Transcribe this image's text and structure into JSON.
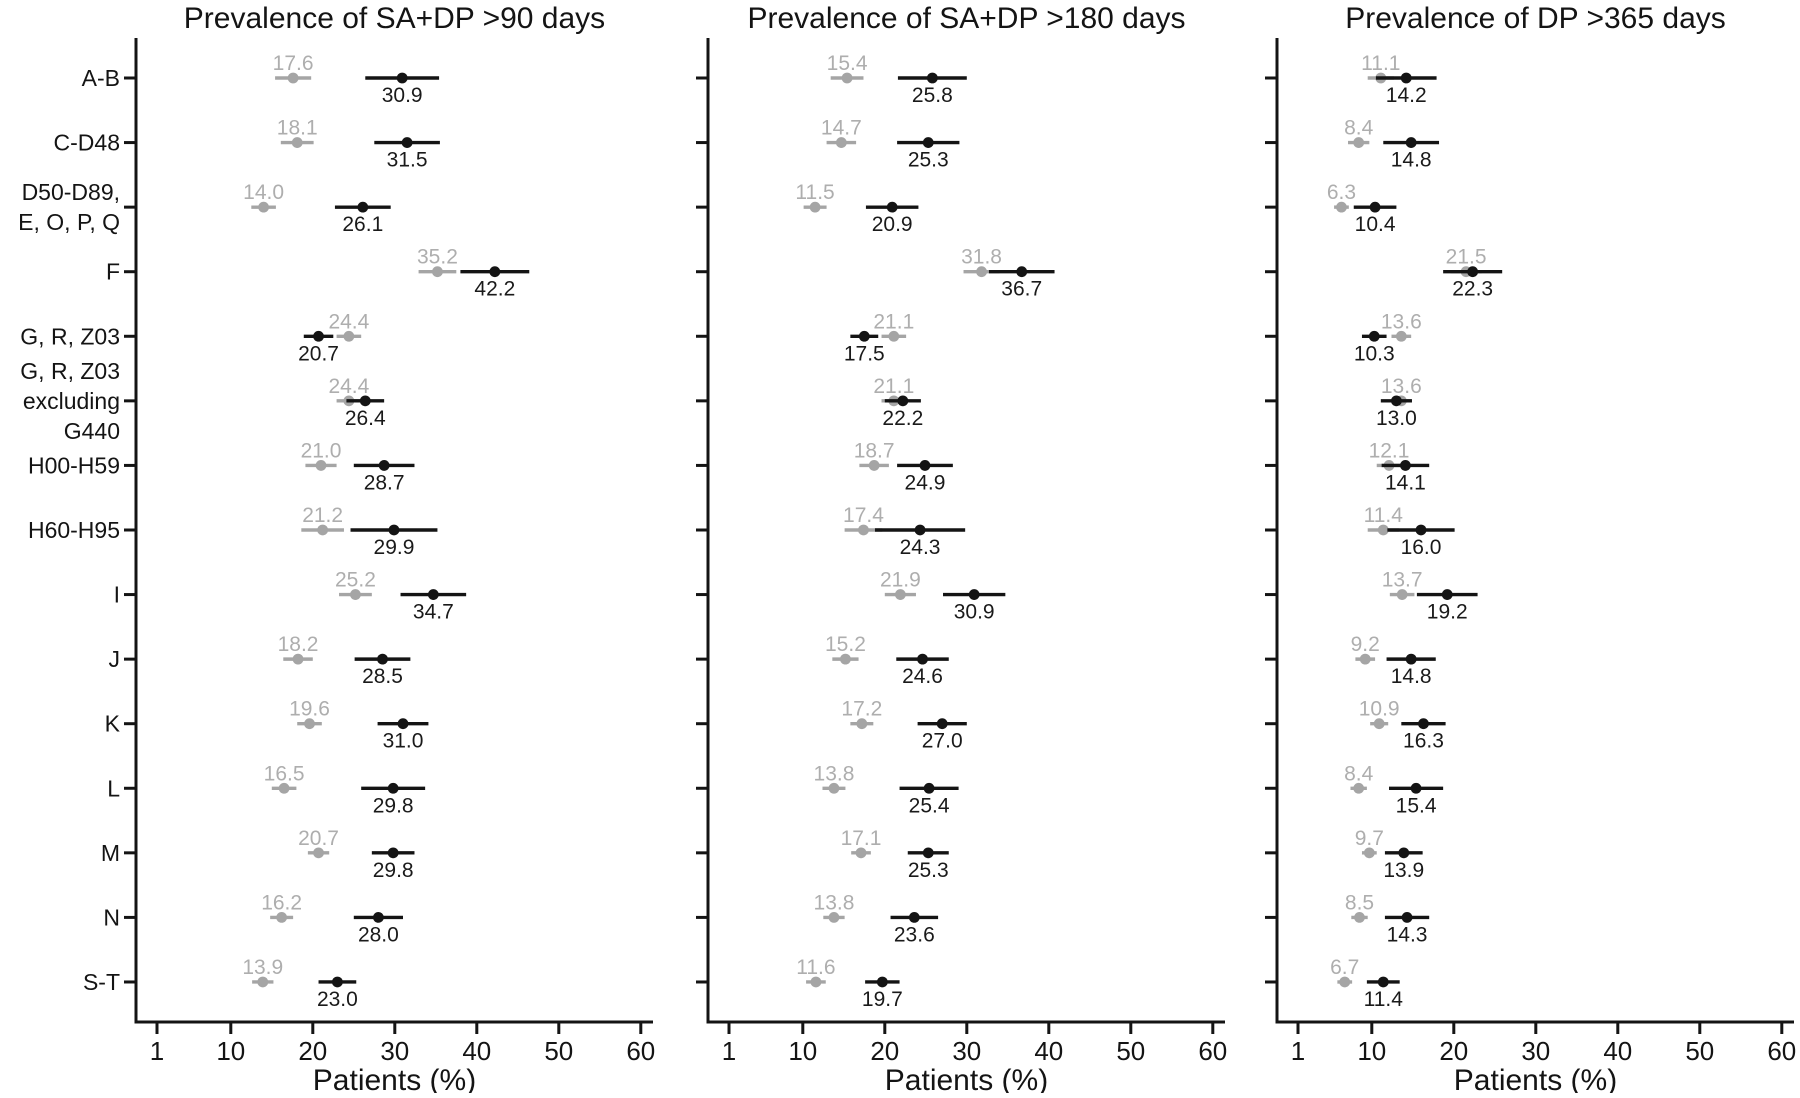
{
  "figure": {
    "background": "#ffffff",
    "series_colors": {
      "gray": "#a5a5a5",
      "black": "#141414"
    },
    "label_colors": {
      "gray": "#aeaeae",
      "black": "#1a1a1a"
    },
    "xlabel": "Patients (%)"
  },
  "chart_data": [
    {
      "type": "scatter",
      "title": "Prevalence of SA+DP >90 days",
      "xlabel": "Patients (%)",
      "scale": "linear",
      "xlim": [
        1,
        60
      ],
      "xticks": [
        1,
        10,
        20,
        30,
        40,
        50,
        60
      ],
      "grid": false,
      "legend": "none",
      "categories": [
        [
          "A-B"
        ],
        [
          "C-D48"
        ],
        [
          "D50-D89,",
          "E, O, P, Q"
        ],
        [
          "F"
        ],
        [
          "G, R, Z03"
        ],
        [
          "G, R, Z03",
          "excluding",
          "G440"
        ],
        [
          "H00-H59"
        ],
        [
          "H60-H95"
        ],
        [
          "I"
        ],
        [
          "J"
        ],
        [
          "K"
        ],
        [
          "L"
        ],
        [
          "M"
        ],
        [
          "N"
        ],
        [
          "S-T"
        ]
      ],
      "series": [
        {
          "name": "gray",
          "color": "#a5a5a5",
          "label_position": "above",
          "points": [
            {
              "value": 17.6,
              "lo": 15.4,
              "hi": 19.8
            },
            {
              "value": 18.1,
              "lo": 16.1,
              "hi": 20.1
            },
            {
              "value": 14.0,
              "lo": 12.5,
              "hi": 15.5
            },
            {
              "value": 35.2,
              "lo": 32.9,
              "hi": 37.5
            },
            {
              "value": 24.4,
              "lo": 22.9,
              "hi": 25.9
            },
            {
              "value": 24.4,
              "lo": 22.9,
              "hi": 25.9
            },
            {
              "value": 21.0,
              "lo": 19.1,
              "hi": 22.9
            },
            {
              "value": 21.2,
              "lo": 18.6,
              "hi": 23.8
            },
            {
              "value": 25.2,
              "lo": 23.2,
              "hi": 27.2
            },
            {
              "value": 18.2,
              "lo": 16.4,
              "hi": 20.0
            },
            {
              "value": 19.6,
              "lo": 18.1,
              "hi": 21.1
            },
            {
              "value": 16.5,
              "lo": 15.0,
              "hi": 18.0
            },
            {
              "value": 20.7,
              "lo": 19.4,
              "hi": 22.0
            },
            {
              "value": 16.2,
              "lo": 14.8,
              "hi": 17.6
            },
            {
              "value": 13.9,
              "lo": 12.6,
              "hi": 15.2
            }
          ]
        },
        {
          "name": "black",
          "color": "#141414",
          "label_position": "below",
          "points": [
            {
              "value": 30.9,
              "lo": 26.4,
              "hi": 35.4
            },
            {
              "value": 31.5,
              "lo": 27.5,
              "hi": 35.5
            },
            {
              "value": 26.1,
              "lo": 22.7,
              "hi": 29.5
            },
            {
              "value": 42.2,
              "lo": 38.0,
              "hi": 46.4
            },
            {
              "value": 20.7,
              "lo": 18.9,
              "hi": 22.5
            },
            {
              "value": 26.4,
              "lo": 24.1,
              "hi": 28.7
            },
            {
              "value": 28.7,
              "lo": 25.0,
              "hi": 32.4
            },
            {
              "value": 29.9,
              "lo": 24.6,
              "hi": 35.2
            },
            {
              "value": 34.7,
              "lo": 30.7,
              "hi": 38.7
            },
            {
              "value": 28.5,
              "lo": 25.1,
              "hi": 31.9
            },
            {
              "value": 31.0,
              "lo": 27.9,
              "hi": 34.1
            },
            {
              "value": 29.8,
              "lo": 25.9,
              "hi": 33.7
            },
            {
              "value": 29.8,
              "lo": 27.2,
              "hi": 32.4
            },
            {
              "value": 28.0,
              "lo": 25.0,
              "hi": 31.0
            },
            {
              "value": 23.0,
              "lo": 20.7,
              "hi": 25.3
            }
          ]
        }
      ]
    },
    {
      "type": "scatter",
      "title": "Prevalence of SA+DP >180 days",
      "xlabel": "Patients (%)",
      "scale": "linear",
      "xlim": [
        1,
        60
      ],
      "xticks": [
        1,
        10,
        20,
        30,
        40,
        50,
        60
      ],
      "grid": false,
      "legend": "none",
      "categories": [
        [
          "A-B"
        ],
        [
          "C-D48"
        ],
        [
          "D50-D89,",
          "E, O, P, Q"
        ],
        [
          "F"
        ],
        [
          "G, R, Z03"
        ],
        [
          "G, R, Z03",
          "excluding",
          "G440"
        ],
        [
          "H00-H59"
        ],
        [
          "H60-H95"
        ],
        [
          "I"
        ],
        [
          "J"
        ],
        [
          "K"
        ],
        [
          "L"
        ],
        [
          "M"
        ],
        [
          "N"
        ],
        [
          "S-T"
        ]
      ],
      "series": [
        {
          "name": "gray",
          "color": "#a5a5a5",
          "label_position": "above",
          "points": [
            {
              "value": 15.4,
              "lo": 13.4,
              "hi": 17.4
            },
            {
              "value": 14.7,
              "lo": 12.9,
              "hi": 16.5
            },
            {
              "value": 11.5,
              "lo": 10.1,
              "hi": 12.9
            },
            {
              "value": 31.8,
              "lo": 29.6,
              "hi": 34.0
            },
            {
              "value": 21.1,
              "lo": 19.6,
              "hi": 22.6
            },
            {
              "value": 21.1,
              "lo": 19.6,
              "hi": 22.6
            },
            {
              "value": 18.7,
              "lo": 16.9,
              "hi": 20.5
            },
            {
              "value": 17.4,
              "lo": 15.1,
              "hi": 19.7
            },
            {
              "value": 21.9,
              "lo": 20.0,
              "hi": 23.8
            },
            {
              "value": 15.2,
              "lo": 13.6,
              "hi": 16.8
            },
            {
              "value": 17.2,
              "lo": 15.8,
              "hi": 18.6
            },
            {
              "value": 13.8,
              "lo": 12.4,
              "hi": 15.2
            },
            {
              "value": 17.1,
              "lo": 15.9,
              "hi": 18.3
            },
            {
              "value": 13.8,
              "lo": 12.5,
              "hi": 15.1
            },
            {
              "value": 11.6,
              "lo": 10.4,
              "hi": 12.8
            }
          ]
        },
        {
          "name": "black",
          "color": "#141414",
          "label_position": "below",
          "points": [
            {
              "value": 25.8,
              "lo": 21.6,
              "hi": 30.0
            },
            {
              "value": 25.3,
              "lo": 21.5,
              "hi": 29.1
            },
            {
              "value": 20.9,
              "lo": 17.7,
              "hi": 24.1
            },
            {
              "value": 36.7,
              "lo": 32.7,
              "hi": 40.7
            },
            {
              "value": 17.5,
              "lo": 15.8,
              "hi": 19.2
            },
            {
              "value": 22.2,
              "lo": 20.0,
              "hi": 24.4
            },
            {
              "value": 24.9,
              "lo": 21.5,
              "hi": 28.3
            },
            {
              "value": 24.3,
              "lo": 18.8,
              "hi": 29.8
            },
            {
              "value": 30.9,
              "lo": 27.1,
              "hi": 34.7
            },
            {
              "value": 24.6,
              "lo": 21.4,
              "hi": 27.8
            },
            {
              "value": 27.0,
              "lo": 24.0,
              "hi": 30.0
            },
            {
              "value": 25.4,
              "lo": 21.8,
              "hi": 29.0
            },
            {
              "value": 25.3,
              "lo": 22.8,
              "hi": 27.8
            },
            {
              "value": 23.6,
              "lo": 20.7,
              "hi": 26.5
            },
            {
              "value": 19.7,
              "lo": 17.6,
              "hi": 21.8
            }
          ]
        }
      ]
    },
    {
      "type": "scatter",
      "title": "Prevalence of DP >365 days",
      "xlabel": "Patients (%)",
      "scale": "linear",
      "xlim": [
        1,
        60
      ],
      "xticks": [
        1,
        10,
        20,
        30,
        40,
        50,
        60
      ],
      "grid": false,
      "legend": "none",
      "categories": [
        [
          "A-B"
        ],
        [
          "C-D48"
        ],
        [
          "D50-D89,",
          "E, O, P, Q"
        ],
        [
          "F"
        ],
        [
          "G, R, Z03"
        ],
        [
          "G, R, Z03",
          "excluding",
          "G440"
        ],
        [
          "H00-H59"
        ],
        [
          "H60-H95"
        ],
        [
          "I"
        ],
        [
          "J"
        ],
        [
          "K"
        ],
        [
          "L"
        ],
        [
          "M"
        ],
        [
          "N"
        ],
        [
          "S-T"
        ]
      ],
      "series": [
        {
          "name": "gray",
          "color": "#a5a5a5",
          "label_position": "above",
          "points": [
            {
              "value": 11.1,
              "lo": 9.5,
              "hi": 12.7
            },
            {
              "value": 8.4,
              "lo": 7.1,
              "hi": 9.7
            },
            {
              "value": 6.3,
              "lo": 5.4,
              "hi": 7.2
            },
            {
              "value": 21.5,
              "lo": 19.6,
              "hi": 23.4
            },
            {
              "value": 13.6,
              "lo": 12.4,
              "hi": 14.8
            },
            {
              "value": 13.6,
              "lo": 12.4,
              "hi": 14.8
            },
            {
              "value": 12.1,
              "lo": 10.6,
              "hi": 13.6
            },
            {
              "value": 11.4,
              "lo": 9.5,
              "hi": 13.3
            },
            {
              "value": 13.7,
              "lo": 12.2,
              "hi": 15.2
            },
            {
              "value": 9.2,
              "lo": 8.0,
              "hi": 10.4
            },
            {
              "value": 10.9,
              "lo": 9.8,
              "hi": 12.0
            },
            {
              "value": 8.4,
              "lo": 7.4,
              "hi": 9.4
            },
            {
              "value": 9.7,
              "lo": 8.8,
              "hi": 10.6
            },
            {
              "value": 8.5,
              "lo": 7.5,
              "hi": 9.5
            },
            {
              "value": 6.7,
              "lo": 5.8,
              "hi": 7.6
            }
          ]
        },
        {
          "name": "black",
          "color": "#141414",
          "label_position": "below",
          "points": [
            {
              "value": 14.2,
              "lo": 10.5,
              "hi": 17.9
            },
            {
              "value": 14.8,
              "lo": 11.4,
              "hi": 18.2
            },
            {
              "value": 10.4,
              "lo": 7.8,
              "hi": 13.0
            },
            {
              "value": 22.3,
              "lo": 18.7,
              "hi": 25.9
            },
            {
              "value": 10.3,
              "lo": 8.8,
              "hi": 11.8
            },
            {
              "value": 13.0,
              "lo": 11.1,
              "hi": 14.9
            },
            {
              "value": 14.1,
              "lo": 11.2,
              "hi": 17.0
            },
            {
              "value": 16.0,
              "lo": 11.9,
              "hi": 20.1
            },
            {
              "value": 19.2,
              "lo": 15.5,
              "hi": 22.9
            },
            {
              "value": 14.8,
              "lo": 11.8,
              "hi": 17.8
            },
            {
              "value": 16.3,
              "lo": 13.6,
              "hi": 19.0
            },
            {
              "value": 15.4,
              "lo": 12.1,
              "hi": 18.7
            },
            {
              "value": 13.9,
              "lo": 11.6,
              "hi": 16.2
            },
            {
              "value": 14.3,
              "lo": 11.6,
              "hi": 17.0
            },
            {
              "value": 11.4,
              "lo": 9.4,
              "hi": 13.4
            }
          ]
        }
      ]
    }
  ]
}
